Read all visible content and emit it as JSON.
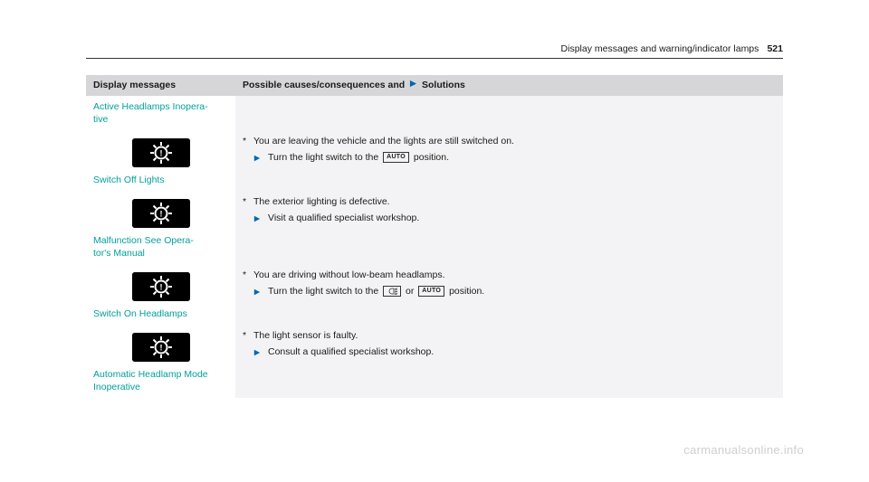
{
  "header": {
    "section_title": "Display messages and warning/indicator lamps",
    "page_number": "521"
  },
  "table": {
    "headers": {
      "messages": "Display messages",
      "causes_prefix": "Possible causes/consequences and",
      "causes_suffix": "Solutions"
    },
    "rows": [
      {
        "msg_label": "Active Headlamps Inopera‐\ntive",
        "has_icon": false,
        "causes": [],
        "solutions": []
      },
      {
        "msg_label": "Switch Off Lights",
        "has_icon": true,
        "icon_type": "light-warn",
        "causes": [
          "You are leaving the vehicle and the lights are still switched on."
        ],
        "solutions": [
          {
            "pre": "Turn the light switch to the",
            "icons": [
              "auto"
            ],
            "post": "position."
          }
        ]
      },
      {
        "msg_label": "Malfunction See Opera‐\ntor's Manual",
        "has_icon": true,
        "icon_type": "light-warn",
        "causes": [
          "The exterior lighting is defective."
        ],
        "solutions": [
          {
            "pre": "Visit a qualified specialist workshop.",
            "icons": [],
            "post": ""
          }
        ]
      },
      {
        "msg_label": "Switch On Headlamps",
        "has_icon": true,
        "icon_type": "light-warn",
        "causes": [
          "You are driving without low-beam headlamps."
        ],
        "solutions": [
          {
            "pre": "Turn the light switch to the",
            "icons": [
              "headlamp",
              "or_text",
              "auto"
            ],
            "post": "position."
          }
        ]
      },
      {
        "msg_label": "Automatic Headlamp Mode\nInoperative",
        "has_icon": true,
        "icon_type": "light-warn",
        "causes": [
          "The light sensor is faulty."
        ],
        "solutions": [
          {
            "pre": "Consult a qualified specialist workshop.",
            "icons": [],
            "post": ""
          }
        ]
      }
    ]
  },
  "inline_icons": {
    "auto_label": "AUTO",
    "or_text": "or"
  },
  "watermark": "carmanualsonline.info",
  "colors": {
    "teal": "#00a19a",
    "header_bg": "#d6d6d8",
    "cell_bg": "#f3f3f5",
    "triangle": "#0066b3"
  }
}
